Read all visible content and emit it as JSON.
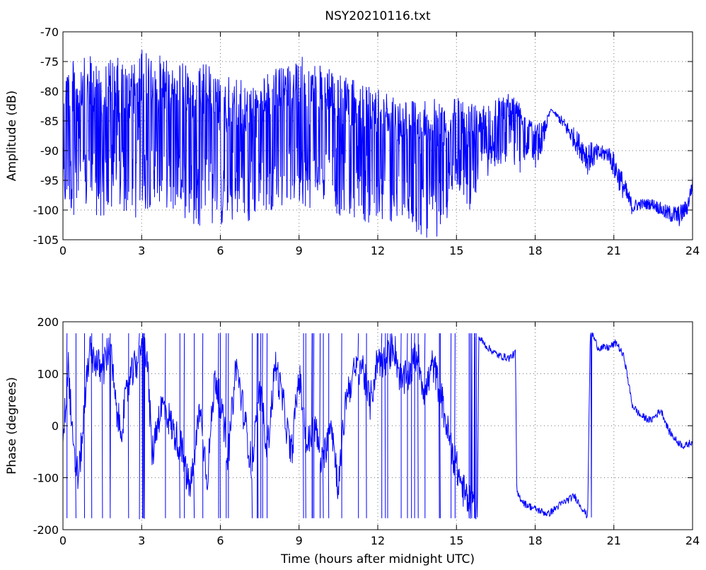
{
  "figure": {
    "title": "NSY20210116.txt",
    "xlabel": "Time (hours after midnight UTC)",
    "line_color": "#0000ff"
  },
  "chart_data": [
    {
      "type": "line",
      "title": "NSY20210116.txt",
      "xlabel": "",
      "ylabel": "Amplitude (dB)",
      "xlim": [
        0,
        24
      ],
      "ylim": [
        -105,
        -70
      ],
      "xticks": [
        0,
        3,
        6,
        9,
        12,
        15,
        18,
        21,
        24
      ],
      "yticks": [
        -105,
        -100,
        -95,
        -90,
        -85,
        -80,
        -75,
        -70
      ],
      "grid": true,
      "series": [
        {
          "x": [
            0,
            0.5,
            1,
            1.5,
            2,
            2.5,
            3,
            3.5,
            4,
            4.5,
            5,
            5.5,
            6,
            6.5,
            7,
            7.5,
            8,
            8.5,
            9,
            9.5,
            10,
            10.5,
            11,
            11.5,
            12,
            12.5,
            13,
            13.5,
            14,
            14.5,
            15,
            15.5,
            16,
            16.5,
            17,
            17.5,
            17.75,
            18,
            18.3,
            18.6,
            19,
            19.5,
            20,
            20.5,
            20.8,
            21,
            21.3,
            21.7,
            22,
            22.5,
            23,
            23.5,
            23.8,
            24
          ],
          "y_max": [
            -74,
            -75,
            -74,
            -75,
            -74,
            -76,
            -73,
            -74,
            -74,
            -75,
            -76,
            -75,
            -78,
            -77,
            -79,
            -78,
            -76,
            -76,
            -74,
            -75,
            -76,
            -77,
            -78,
            -79,
            -79,
            -80,
            -81,
            -81,
            -81,
            -82,
            -81,
            -82,
            -82,
            -81,
            -80,
            -82,
            -84,
            -85,
            -85,
            -83,
            -84,
            -86,
            -88,
            -89,
            -89,
            -90,
            -93,
            -98,
            -98,
            -98,
            -99,
            -99,
            -98,
            -94
          ],
          "y_min": [
            -100,
            -101,
            -100,
            -102,
            -100,
            -101,
            -102,
            -98,
            -100,
            -101,
            -103,
            -102,
            -103,
            -102,
            -103,
            -100,
            -100,
            -99,
            -99,
            -100,
            -98,
            -101,
            -101,
            -102,
            -103,
            -102,
            -103,
            -104,
            -105,
            -104,
            -96,
            -100,
            -95,
            -93,
            -92,
            -94,
            -90,
            -93,
            -90,
            -83,
            -86,
            -90,
            -94,
            -92,
            -92,
            -95,
            -98,
            -101,
            -100,
            -100,
            -102,
            -103,
            -101,
            -97
          ]
        }
      ]
    },
    {
      "type": "line",
      "title": "",
      "xlabel": "Time (hours after midnight UTC)",
      "ylabel": "Phase (degrees)",
      "xlim": [
        0,
        24
      ],
      "ylim": [
        -200,
        200
      ],
      "xticks": [
        0,
        3,
        6,
        9,
        12,
        15,
        18,
        21,
        24
      ],
      "yticks": [
        -200,
        -100,
        0,
        100,
        200
      ],
      "grid": true,
      "series": [
        {
          "x": [
            0,
            0.2,
            0.4,
            0.6,
            0.8,
            1.0,
            1.2,
            1.5,
            1.8,
            2.0,
            2.2,
            2.5,
            2.8,
            3.0,
            3.2,
            3.4,
            3.6,
            3.8,
            4.0,
            4.2,
            4.5,
            4.8,
            5.0,
            5.2,
            5.5,
            5.8,
            6.0,
            6.3,
            6.6,
            6.9,
            7.2,
            7.5,
            7.8,
            8.1,
            8.4,
            8.7,
            9.0,
            9.3,
            9.6,
            9.9,
            10.2,
            10.5,
            10.8,
            11.1,
            11.4,
            11.7,
            12.0,
            12.3,
            12.6,
            12.9,
            13.2,
            13.5,
            13.8,
            14.1,
            14.4,
            14.7,
            15.0,
            15.3,
            15.6,
            15.8,
            15.85,
            16.2,
            16.6,
            17.0,
            17.25,
            17.3,
            17.6,
            18.0,
            18.5,
            19.0,
            19.5,
            20.0,
            20.1,
            20.15,
            20.4,
            20.8,
            21.1,
            21.4,
            21.7,
            22.0,
            22.4,
            22.8,
            23.1,
            23.4,
            23.7,
            24.0
          ],
          "y": [
            -30,
            120,
            -60,
            -100,
            20,
            140,
            130,
            100,
            160,
            40,
            -10,
            80,
            120,
            170,
            140,
            -60,
            10,
            40,
            20,
            -10,
            -40,
            -120,
            -80,
            40,
            -100,
            100,
            40,
            -60,
            120,
            20,
            -80,
            60,
            -40,
            120,
            40,
            -60,
            100,
            -40,
            0,
            -80,
            20,
            -120,
            60,
            100,
            120,
            40,
            130,
            120,
            160,
            80,
            100,
            140,
            60,
            120,
            60,
            -20,
            -80,
            -130,
            -160,
            -170,
            170,
            150,
            135,
            130,
            140,
            -130,
            -150,
            -160,
            -170,
            -150,
            -135,
            -175,
            175,
            180,
            150,
            150,
            160,
            130,
            40,
            20,
            10,
            30,
            -10,
            -30,
            -40,
            -30
          ]
        }
      ]
    }
  ]
}
